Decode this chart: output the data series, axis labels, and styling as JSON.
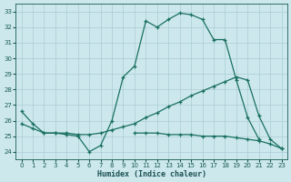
{
  "xlabel": "Humidex (Indice chaleur)",
  "xlim": [
    -0.5,
    23.5
  ],
  "ylim": [
    23.5,
    33.5
  ],
  "yticks": [
    24,
    25,
    26,
    27,
    28,
    29,
    30,
    31,
    32,
    33
  ],
  "xticks": [
    0,
    1,
    2,
    3,
    4,
    5,
    6,
    7,
    8,
    9,
    10,
    11,
    12,
    13,
    14,
    15,
    16,
    17,
    18,
    19,
    20,
    21,
    22,
    23
  ],
  "bg_color": "#cce8ec",
  "grid_color": "#aaccd4",
  "line_color": "#1a7060",
  "line1_x": [
    0,
    1,
    2,
    3,
    4,
    5,
    6,
    7,
    8,
    9,
    10,
    11,
    12,
    13,
    14,
    15,
    16,
    17,
    18,
    19,
    20,
    21
  ],
  "line1_y": [
    26.6,
    25.8,
    25.2,
    25.2,
    25.1,
    25.0,
    24.0,
    24.4,
    26.0,
    28.8,
    29.5,
    32.4,
    32.0,
    32.5,
    32.9,
    32.8,
    32.5,
    31.2,
    31.2,
    28.6,
    26.2,
    24.8
  ],
  "line2_x": [
    0,
    1,
    2,
    3,
    4,
    5,
    6,
    7,
    8,
    9,
    10,
    11,
    12,
    13,
    14,
    15,
    16,
    17,
    18,
    19,
    20,
    21,
    22,
    23
  ],
  "line2_y": [
    25.8,
    25.5,
    25.2,
    25.2,
    25.2,
    25.1,
    25.1,
    25.2,
    25.4,
    25.6,
    25.8,
    26.2,
    26.5,
    26.9,
    27.2,
    27.6,
    27.9,
    28.2,
    28.5,
    28.8,
    28.6,
    26.3,
    24.8,
    24.2
  ],
  "line3_x": [
    0,
    1,
    2,
    3,
    4,
    5,
    6,
    7,
    8,
    9,
    10,
    11,
    12,
    13,
    14,
    15,
    16,
    17,
    18,
    19,
    20,
    21,
    22,
    23
  ],
  "line3_y": [
    null,
    null,
    null,
    null,
    null,
    null,
    null,
    null,
    null,
    null,
    25.2,
    25.2,
    25.2,
    25.1,
    25.1,
    25.1,
    25.0,
    25.0,
    25.0,
    24.9,
    24.8,
    24.7,
    24.5,
    24.2
  ]
}
